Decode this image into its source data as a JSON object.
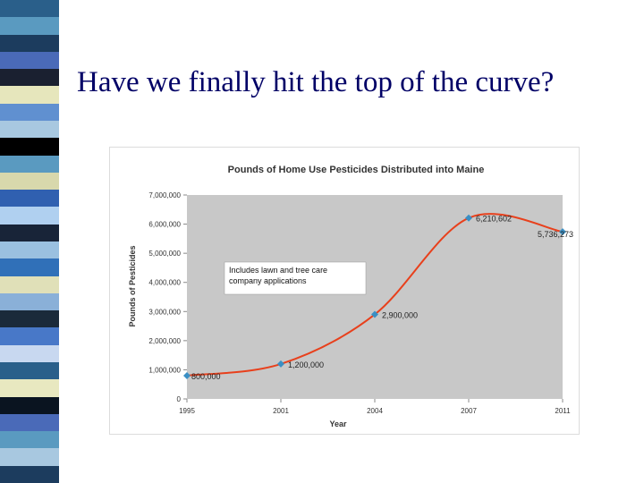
{
  "slide": {
    "title": "Have we finally hit the top of the curve?",
    "stripe_colors": [
      "#2a5f8a",
      "#5a9ac0",
      "#1c3c5e",
      "#4a6ab8",
      "#1a2030",
      "#e6e6bc",
      "#6090d0",
      "#a8c8e0",
      "#000000",
      "#5a9ac0",
      "#d8d8ac",
      "#3060b0",
      "#b0d0f0",
      "#182438",
      "#9ac0e0",
      "#3070b8",
      "#e0e0b8",
      "#8ab0d8",
      "#1a2a3a",
      "#4878c8",
      "#c8d8f0",
      "#2a5f8a",
      "#e8e8c0",
      "#0a1420",
      "#4a6ab8",
      "#5a9ac0",
      "#a8c8e0",
      "#1c3c5e"
    ]
  },
  "chart_data": {
    "type": "line",
    "title": "Pounds of Home Use Pesticides Distributed into Maine",
    "xlabel": "Year",
    "ylabel": "Pounds of Pesticides",
    "x": [
      1995,
      2001,
      2004,
      2007,
      2011
    ],
    "x_tick_labels": [
      "1995",
      "2001",
      "2004",
      "2007",
      "2011"
    ],
    "series": [
      {
        "name": "",
        "values": [
          800000,
          1200000,
          2900000,
          6210602,
          5736273
        ],
        "labels": [
          "800,000",
          "1,200,000",
          "2,900,000",
          "6,210,602",
          "5,736,273"
        ]
      }
    ],
    "ylim": [
      0,
      7000000
    ],
    "y_ticks": [
      0,
      1000000,
      2000000,
      3000000,
      4000000,
      5000000,
      6000000,
      7000000
    ],
    "y_tick_labels": [
      "0",
      "1,000,000",
      "2,000,000",
      "3,000,000",
      "4,000,000",
      "5,000,000",
      "6,000,000",
      "7,000,000"
    ],
    "x_axis_style": "categorical",
    "grid": false,
    "legend": "none",
    "annotation": "Includes lawn and tree care company applications",
    "colors": {
      "plot_background": "#c8c8c8",
      "line": "#e8401c",
      "marker": "#3a8fc4"
    }
  }
}
